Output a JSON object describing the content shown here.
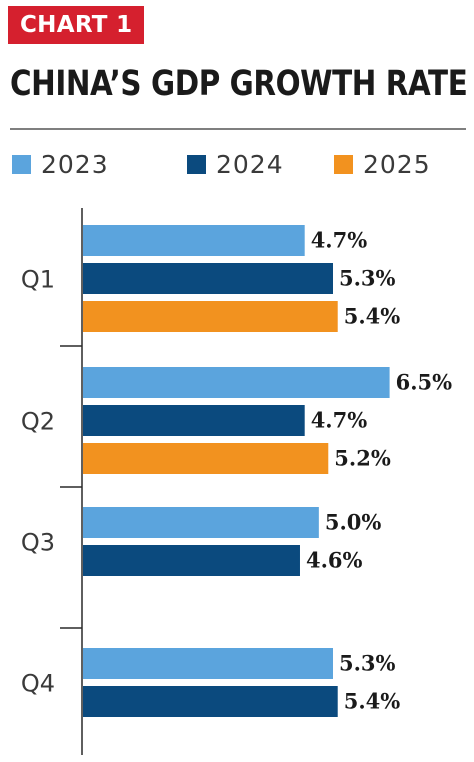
{
  "badge": "CHART 1",
  "title": "CHINA’S GDP GROWTH RATE",
  "colors": {
    "badge_bg": "#d5202e",
    "2023": "#5ba4dd",
    "2024": "#0b4a7e",
    "2025": "#f2921f"
  },
  "chart_data": {
    "type": "bar",
    "orientation": "horizontal",
    "title": "CHINA’S GDP GROWTH RATE",
    "categories": [
      "Q1",
      "Q2",
      "Q3",
      "Q4"
    ],
    "series": [
      {
        "name": "2023",
        "color": "#5ba4dd",
        "values": [
          4.7,
          6.5,
          5.0,
          5.3
        ],
        "labels": [
          "4.7%",
          "6.5%",
          "5.0%",
          "5.3%"
        ]
      },
      {
        "name": "2024",
        "color": "#0b4a7e",
        "values": [
          5.3,
          4.7,
          4.6,
          5.4
        ],
        "labels": [
          "5.3%",
          "4.7%",
          "4.6%",
          "5.4%"
        ]
      },
      {
        "name": "2025",
        "color": "#f2921f",
        "values": [
          5.4,
          5.2,
          null,
          null
        ],
        "labels": [
          "5.4%",
          "5.2%",
          null,
          null
        ]
      }
    ],
    "xlim": [
      0,
      7
    ],
    "legend_position": "top",
    "grid": false
  }
}
